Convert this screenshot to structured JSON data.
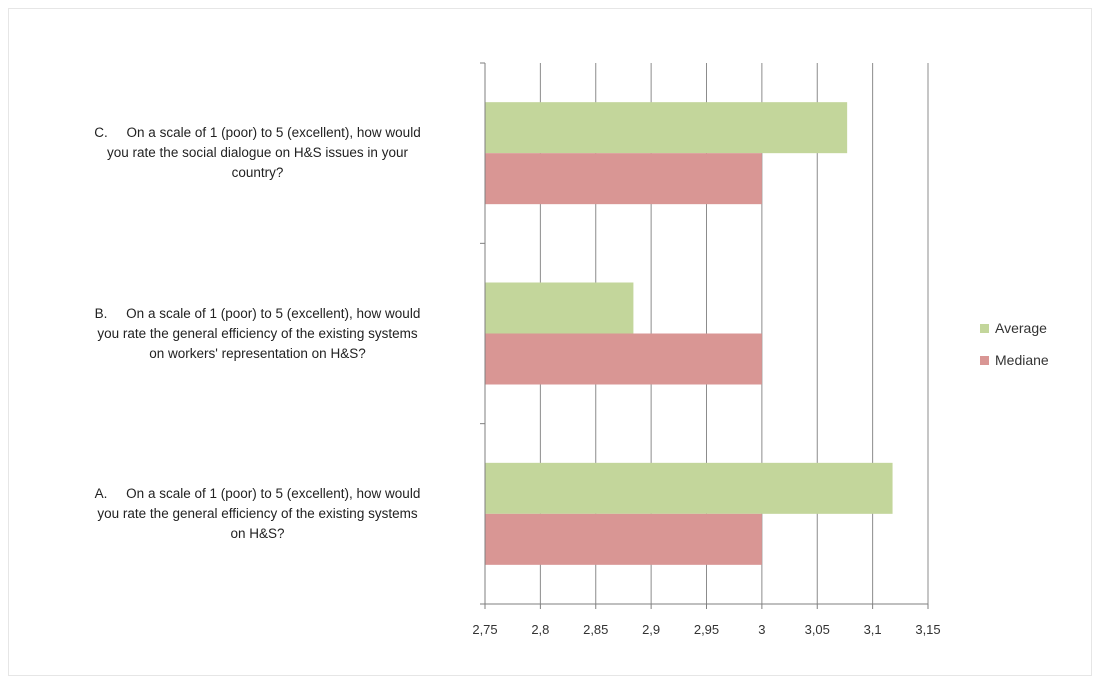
{
  "chart_data": {
    "type": "bar",
    "orientation": "horizontal",
    "categories": [
      "A.     On a scale of 1 (poor) to 5 (excellent), how would you rate the general efficiency of the existing systems on H&S?",
      "B.     On a scale of 1 (poor) to 5 (excellent), how would you rate the general efficiency of the existing systems on workers' representation on H&S?",
      "C.     On a scale of 1 (poor) to 5 (excellent), how would you rate the social dialogue on H&S issues in your country?"
    ],
    "category_lines": [
      [
        "A.     On a scale of 1 (poor) to 5 (excellent), how would",
        "you rate the general efficiency of the existing systems",
        "on H&S?"
      ],
      [
        "B.     On a scale of 1 (poor) to 5 (excellent), how would",
        "you rate the general efficiency of the existing systems",
        "on workers' representation on H&S?"
      ],
      [
        "C.     On a scale of 1 (poor) to 5 (excellent), how would",
        "you rate the social dialogue on H&S issues in your",
        "country?"
      ]
    ],
    "series": [
      {
        "name": "Average",
        "color": "#c3d69b",
        "values": [
          3.118,
          2.884,
          3.077
        ]
      },
      {
        "name": "Mediane",
        "color": "#d99694",
        "values": [
          3.0,
          3.0,
          3.0
        ]
      }
    ],
    "xlim": [
      2.75,
      3.15
    ],
    "x_ticks": [
      "2,75",
      "2,8",
      "2,85",
      "2,9",
      "2,95",
      "3",
      "3,05",
      "3,1",
      "3,15"
    ],
    "x_tick_values": [
      2.75,
      2.8,
      2.85,
      2.9,
      2.95,
      3.0,
      3.05,
      3.1,
      3.15
    ],
    "grid": "vertical",
    "legend": "right"
  }
}
